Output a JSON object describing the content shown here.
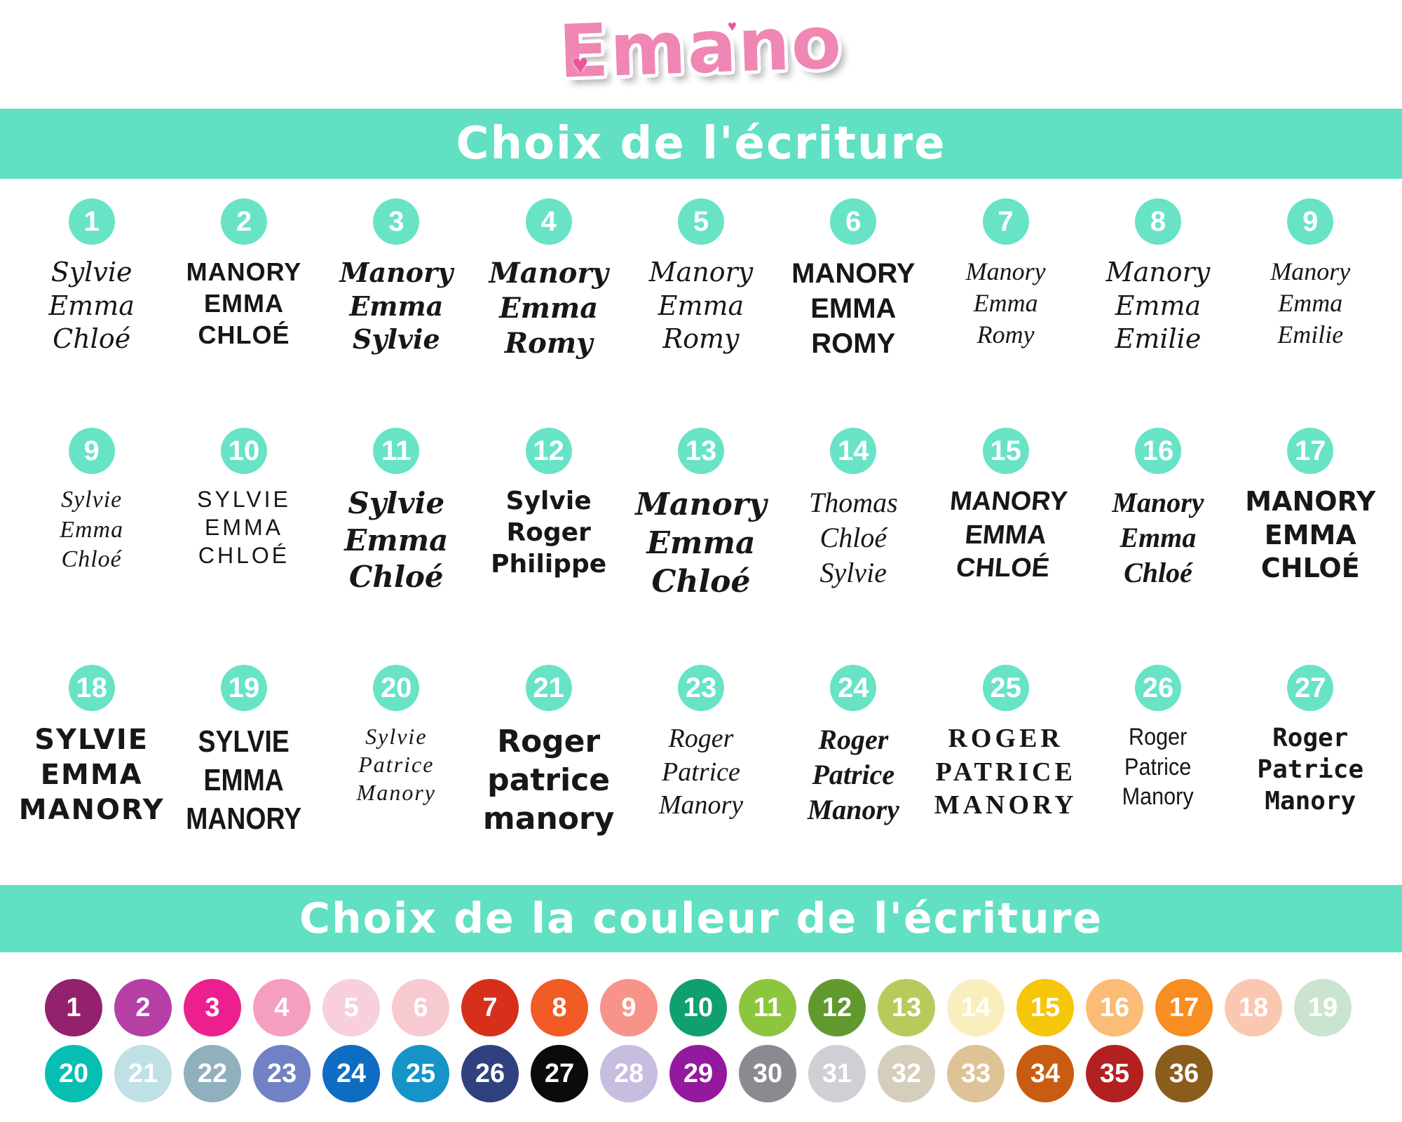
{
  "brand": {
    "name": "Emano",
    "heart_icon": "♥"
  },
  "banners": {
    "writing": "Choix de l'écriture",
    "color": "Choix de la couleur de l'écriture"
  },
  "font_rows": [
    {
      "items": [
        {
          "num": "1",
          "lines": [
            "Sylvie",
            "Emma",
            "Chloé"
          ]
        },
        {
          "num": "2",
          "lines": [
            "MANORY",
            "EMMA",
            "CHLOÉ"
          ]
        },
        {
          "num": "3",
          "lines": [
            "Manory",
            "Emma",
            "Sylvie"
          ]
        },
        {
          "num": "4",
          "lines": [
            "Manory",
            "Emma",
            "Romy"
          ]
        },
        {
          "num": "5",
          "lines": [
            "Manory",
            "Emma",
            "Romy"
          ]
        },
        {
          "num": "6",
          "lines": [
            "MANORY",
            "EMMA",
            "ROMY"
          ]
        },
        {
          "num": "7",
          "lines": [
            "Manory",
            "Emma",
            "Romy"
          ]
        },
        {
          "num": "8",
          "lines": [
            "Manory",
            "Emma",
            "Emilie"
          ]
        },
        {
          "num": "9",
          "lines": [
            "Manory",
            "Emma",
            "Emilie"
          ]
        }
      ]
    },
    {
      "items": [
        {
          "num": "9",
          "lines": [
            "Sylvie",
            "Emma",
            "Chloé"
          ]
        },
        {
          "num": "10",
          "lines": [
            "SYLVIE",
            "EMMA",
            "CHLOÉ"
          ]
        },
        {
          "num": "11",
          "lines": [
            "Sylvie",
            "Emma",
            "Chloé"
          ]
        },
        {
          "num": "12",
          "lines": [
            "Sylvie",
            "Roger",
            "Philippe"
          ]
        },
        {
          "num": "13",
          "lines": [
            "Manory",
            "Emma",
            "Chloé"
          ]
        },
        {
          "num": "14",
          "lines": [
            "Thomas",
            "Chloé",
            "Sylvie"
          ]
        },
        {
          "num": "15",
          "lines": [
            "MANORY",
            "EMMA",
            "CHLOÉ"
          ]
        },
        {
          "num": "16",
          "lines": [
            "Manory",
            "Emma",
            "Chloé"
          ]
        },
        {
          "num": "17",
          "lines": [
            "MANORY",
            "EMMA",
            "CHLOÉ"
          ]
        }
      ]
    },
    {
      "items": [
        {
          "num": "18",
          "lines": [
            "SYLVIE",
            "EMMA",
            "MANORY"
          ]
        },
        {
          "num": "19",
          "lines": [
            "SYLVIE",
            "EMMA",
            "MANORY"
          ]
        },
        {
          "num": "20",
          "lines": [
            "Sylvie",
            "Patrice",
            "Manory"
          ]
        },
        {
          "num": "21",
          "lines": [
            "Roger",
            "patrice",
            "manory"
          ]
        },
        {
          "num": "23",
          "lines": [
            "Roger",
            "Patrice",
            "Manory"
          ]
        },
        {
          "num": "24",
          "lines": [
            "Roger",
            "Patrice",
            "Manory"
          ]
        },
        {
          "num": "25",
          "lines": [
            "ROGER",
            "PATRICE",
            "MANORY"
          ]
        },
        {
          "num": "26",
          "lines": [
            "Roger",
            "Patrice",
            "Manory"
          ]
        },
        {
          "num": "27",
          "lines": [
            "Roger",
            "Patrice",
            "Manory"
          ]
        }
      ]
    }
  ],
  "color_rows": [
    {
      "circles": [
        {
          "num": "1",
          "hex": "#94216D"
        },
        {
          "num": "2",
          "hex": "#B53FA5"
        },
        {
          "num": "3",
          "hex": "#EC1F8F"
        },
        {
          "num": "4",
          "hex": "#F49FC2"
        },
        {
          "num": "5",
          "hex": "#F8CFDF"
        },
        {
          "num": "6",
          "hex": "#F8C9D1"
        },
        {
          "num": "7",
          "hex": "#D6301A"
        },
        {
          "num": "8",
          "hex": "#F15B25"
        },
        {
          "num": "9",
          "hex": "#F79489"
        },
        {
          "num": "10",
          "hex": "#10A06F"
        },
        {
          "num": "11",
          "hex": "#8CC63E"
        },
        {
          "num": "12",
          "hex": "#61992F"
        },
        {
          "num": "13",
          "hex": "#B6CB5B"
        },
        {
          "num": "14",
          "hex": "#F9EFBE"
        },
        {
          "num": "15",
          "hex": "#F6C60B"
        },
        {
          "num": "16",
          "hex": "#FBBC78"
        },
        {
          "num": "17",
          "hex": "#F88D21"
        },
        {
          "num": "18",
          "hex": "#FAC7B0"
        },
        {
          "num": "19",
          "hex": "#CBE4D1"
        }
      ]
    },
    {
      "circles": [
        {
          "num": "20",
          "hex": "#06BFB2"
        },
        {
          "num": "21",
          "hex": "#BFE0E5"
        },
        {
          "num": "22",
          "hex": "#90B0BD"
        },
        {
          "num": "23",
          "hex": "#7081C5"
        },
        {
          "num": "24",
          "hex": "#0E6DC2"
        },
        {
          "num": "25",
          "hex": "#1694C7"
        },
        {
          "num": "26",
          "hex": "#30417F"
        },
        {
          "num": "27",
          "hex": "#0B0B0B"
        },
        {
          "num": "28",
          "hex": "#C6BDDF"
        },
        {
          "num": "29",
          "hex": "#94199F"
        },
        {
          "num": "30",
          "hex": "#8A8B90"
        },
        {
          "num": "31",
          "hex": "#CED0D5"
        },
        {
          "num": "32",
          "hex": "#D6CEBD"
        },
        {
          "num": "33",
          "hex": "#DEC397"
        },
        {
          "num": "34",
          "hex": "#C85C12"
        },
        {
          "num": "35",
          "hex": "#B32020"
        },
        {
          "num": "36",
          "hex": "#8B5D1C"
        }
      ]
    }
  ]
}
